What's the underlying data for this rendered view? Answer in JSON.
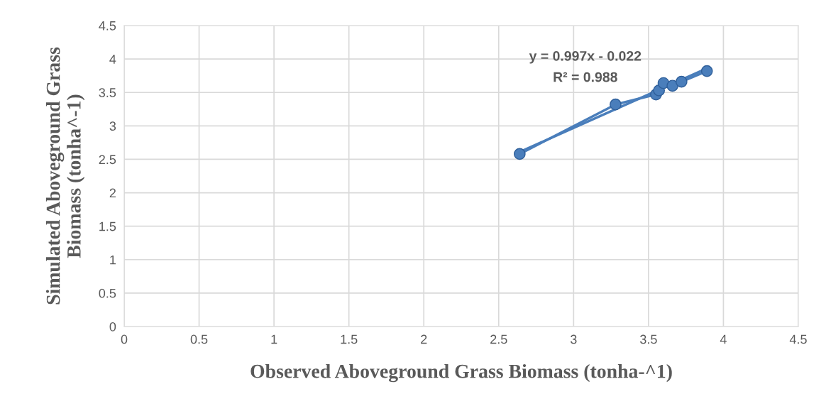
{
  "chart_data": {
    "type": "line",
    "xlabel": "Observed Aboveground Grass Biomass (tonha-^1)",
    "ylabel": "Simulated Aboveground Grass\nBiomass (tonha^-1)",
    "annotations": [
      "y = 0.997x - 0.022",
      "R² = 0.988"
    ],
    "series": [
      {
        "color": "#4a7ebb",
        "marker": "circle",
        "x": [
          2.64,
          3.28,
          3.55,
          3.57,
          3.6,
          3.66,
          3.72,
          3.89
        ],
        "values": [
          2.58,
          3.32,
          3.47,
          3.53,
          3.64,
          3.6,
          3.66,
          3.82
        ]
      },
      {
        "color": "#4a7ebb",
        "marker": "none",
        "x": [
          2.64,
          3.89
        ],
        "values": [
          2.61,
          3.86
        ]
      }
    ],
    "xlim": [
      0,
      4.5
    ],
    "xticks": [
      0,
      0.5,
      1,
      1.5,
      2,
      2.5,
      3,
      3.5,
      4,
      4.5
    ],
    "ylim": [
      0,
      4.5
    ],
    "yticks": [
      0,
      0.5,
      1,
      1.5,
      2,
      2.5,
      3,
      3.5,
      4,
      4.5
    ],
    "grid": true,
    "legend": false
  }
}
